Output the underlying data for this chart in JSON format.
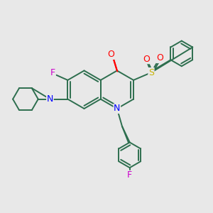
{
  "bg_color": "#e8e8e8",
  "bond_color": "#2d6e4e",
  "bond_lw": 1.4,
  "figsize": [
    3.0,
    3.0
  ],
  "dpi": 100,
  "xlim": [
    -2.2,
    2.8
  ],
  "ylim": [
    -2.5,
    2.2
  ]
}
